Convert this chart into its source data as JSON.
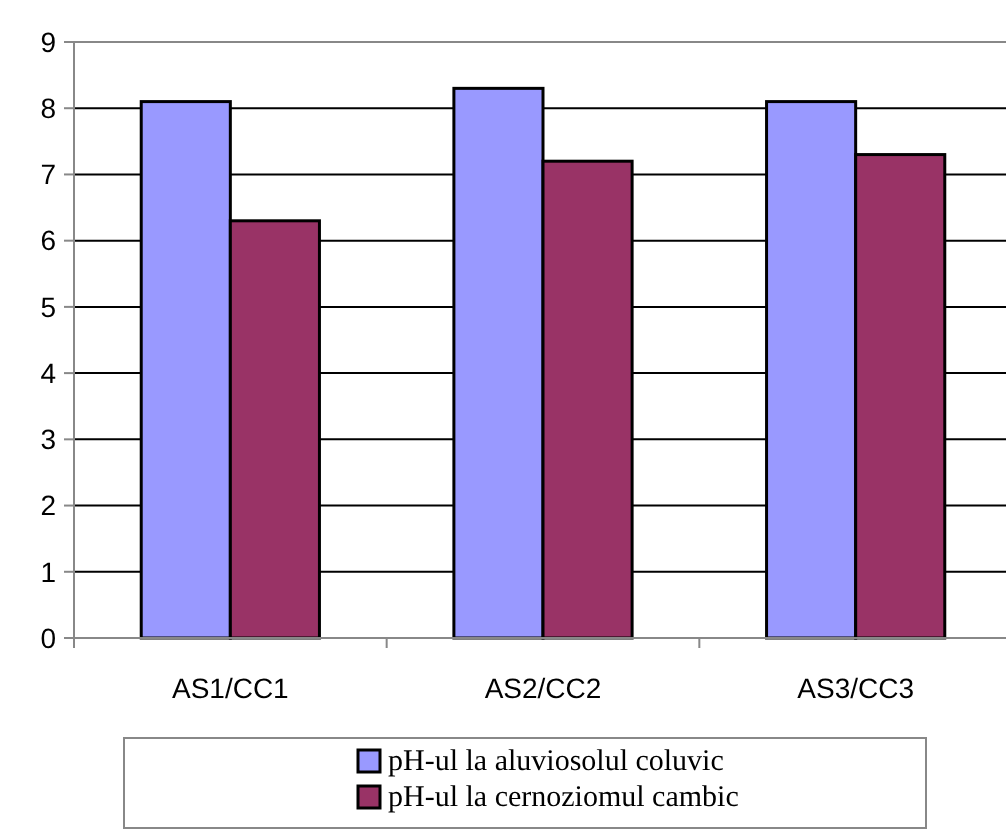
{
  "chart_data": {
    "type": "bar",
    "categories": [
      "AS1/CC1",
      "AS2/CC2",
      "AS3/CC3"
    ],
    "series": [
      {
        "name": "pH-ul la aluviosolul coluvic",
        "color": "#9999ff",
        "values": [
          8.1,
          8.3,
          8.1
        ]
      },
      {
        "name": "pH-ul la cernoziomul cambic",
        "color": "#993366",
        "values": [
          6.3,
          7.2,
          7.3
        ]
      }
    ],
    "ylim": [
      0,
      9
    ],
    "yticks": [
      0,
      1,
      2,
      3,
      4,
      5,
      6,
      7,
      8,
      9
    ],
    "grid": "y",
    "legend": "bottom"
  }
}
